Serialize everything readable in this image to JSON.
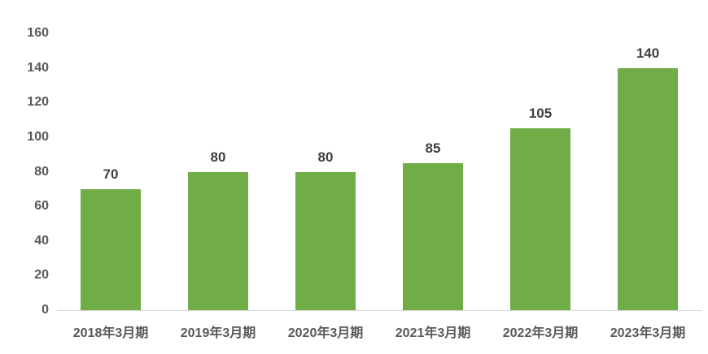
{
  "chart_data": {
    "type": "bar",
    "title": "",
    "xlabel": "",
    "ylabel": "",
    "categories": [
      "2018年3月期",
      "2019年3月期",
      "2020年3月期",
      "2021年3月期",
      "2022年3月期",
      "2023年3月期"
    ],
    "values": [
      70,
      80,
      80,
      85,
      105,
      140
    ],
    "data_labels": [
      "70",
      "80",
      "80",
      "85",
      "105",
      "140"
    ],
    "ylim": [
      0,
      160
    ],
    "yticks": [
      0,
      20,
      40,
      60,
      80,
      100,
      120,
      140,
      160
    ],
    "grid": false,
    "legend_position": "none",
    "colors": {
      "bar": "#70AD47",
      "data_label": "#404040",
      "axis_tick_label": "#595959",
      "axis_line": "#D9D9D9",
      "background": "#FFFFFF"
    }
  }
}
